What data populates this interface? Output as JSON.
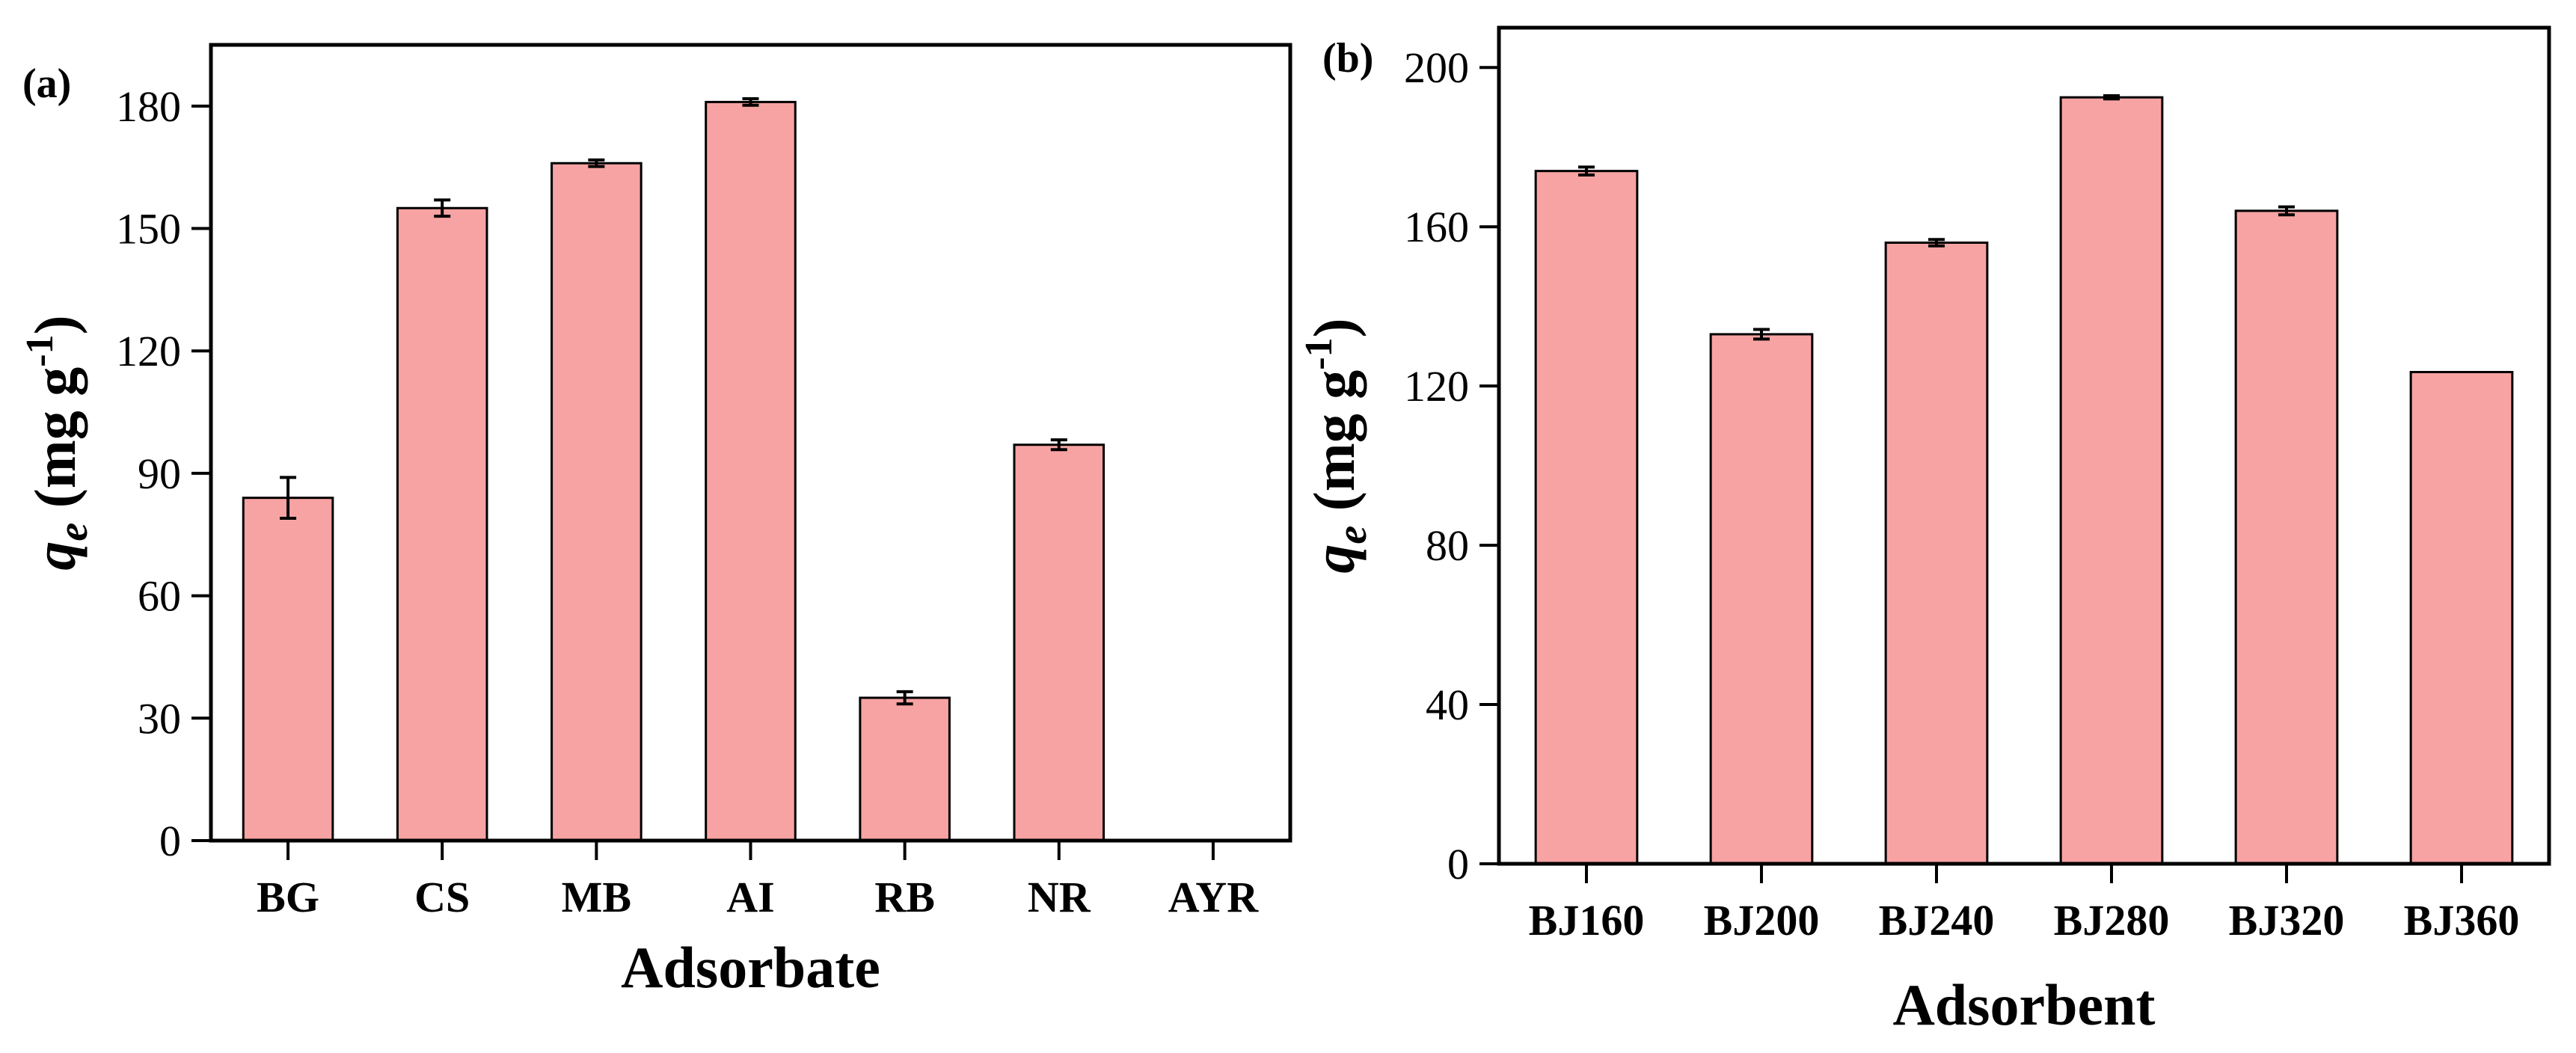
{
  "chart_data": [
    {
      "type": "bar",
      "panel_label": "(a)",
      "categories": [
        "BG",
        "CS",
        "MB",
        "AI",
        "RB",
        "NR",
        "AYR"
      ],
      "values": [
        84,
        155,
        166,
        181,
        35,
        97,
        0
      ],
      "errors": [
        5,
        2,
        0.8,
        0.8,
        1.5,
        1.2,
        0
      ],
      "xlabel": "Adsorbate",
      "ylabel_prefix": "q",
      "ylabel_sub": "e",
      "ylabel_units": " (mg g",
      "ylabel_exp": "-1",
      "ylabel_close": ")",
      "ylim": [
        0,
        195
      ],
      "yticks": [
        0,
        30,
        60,
        90,
        120,
        150,
        180
      ],
      "ytick_labels": [
        "0",
        "30",
        "60",
        "90",
        "120",
        "150",
        "180"
      ],
      "bar_color": "#f8a3a3"
    },
    {
      "type": "bar",
      "panel_label": "(b)",
      "categories": [
        "BJ160",
        "BJ200",
        "BJ240",
        "BJ280",
        "BJ320",
        "BJ360"
      ],
      "values": [
        174,
        133,
        156,
        192.5,
        164,
        123.5
      ],
      "errors": [
        1,
        1.2,
        0.8,
        0.4,
        1,
        0
      ],
      "xlabel": "Adsorbent",
      "ylabel_prefix": "q",
      "ylabel_sub": "e",
      "ylabel_units": " (mg g",
      "ylabel_exp": "-1",
      "ylabel_close": ")",
      "ylim": [
        0,
        210
      ],
      "yticks": [
        0,
        40,
        80,
        120,
        160,
        200
      ],
      "ytick_labels": [
        "0",
        "40",
        "80",
        "120",
        "160",
        "200"
      ],
      "bar_color": "#f8a3a3"
    }
  ]
}
